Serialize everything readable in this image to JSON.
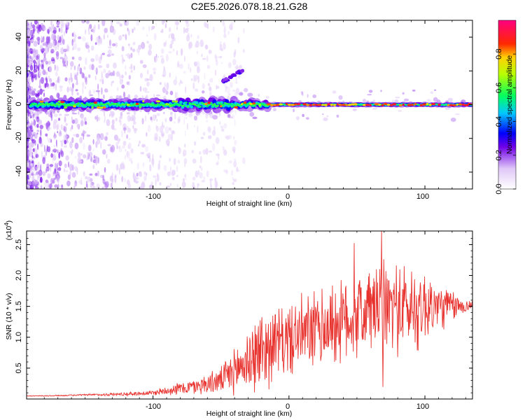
{
  "figure": {
    "title": "C2E5.2026.078.18.21.G28"
  },
  "chart_data": [
    {
      "type": "heatmap",
      "title": "C2E5.2026.078.18.21.G28",
      "xlabel": "Height of straight line (km)",
      "ylabel": "Frequency (Hz)",
      "xlim": [
        -193,
        135
      ],
      "ylim": [
        -50,
        50
      ],
      "xticks": [
        -100,
        0,
        100
      ],
      "yticks": [
        -40,
        -20,
        0,
        20,
        40
      ],
      "xtick_labels": [
        "-100",
        "0",
        "100"
      ],
      "ytick_labels": [
        "-40",
        "-20",
        "0",
        "20",
        "40"
      ],
      "colorbar": {
        "label": "Normalized spectral amplitude",
        "range": [
          0,
          1
        ],
        "ticks": [
          0.0,
          0.2,
          0.4,
          0.6,
          0.8
        ],
        "tick_labels": [
          "0.0",
          "0.2",
          "0.4",
          "0.6",
          "0.8"
        ],
        "stops": [
          {
            "value": 0.0,
            "color": "#ffffff"
          },
          {
            "value": 0.12,
            "color": "#e0c8f8"
          },
          {
            "value": 0.25,
            "color": "#7000e8"
          },
          {
            "value": 0.33,
            "color": "#0000ff"
          },
          {
            "value": 0.45,
            "color": "#00c8ff"
          },
          {
            "value": 0.55,
            "color": "#00ff60"
          },
          {
            "value": 0.68,
            "color": "#b8ff00"
          },
          {
            "value": 0.78,
            "color": "#ffd000"
          },
          {
            "value": 0.86,
            "color": "#ff2800"
          },
          {
            "value": 1.0,
            "color": "#ff0080"
          }
        ]
      },
      "features": [
        {
          "name": "carrier-trace",
          "x_range": [
            -190,
            135
          ],
          "center_hz": 0,
          "peak_amplitude": 0.9
        },
        {
          "name": "drift-feature",
          "x_range": [
            -50,
            -33
          ],
          "y_range_hz": [
            13,
            21
          ]
        }
      ]
    },
    {
      "type": "line",
      "xlabel": "Height of straight line (km)",
      "ylabel": "SNR (10 * v/v)",
      "scale_label": "(x10",
      "scale_exponent": "4",
      "xlim": [
        -193,
        135
      ],
      "ylim": [
        0,
        2.72
      ],
      "xticks": [
        -100,
        0,
        100
      ],
      "yticks": [
        0.5,
        1.0,
        1.5,
        2.0,
        2.5
      ],
      "xtick_labels": [
        "-100",
        "0",
        "100"
      ],
      "ytick_labels": [
        "0.5",
        "1.0",
        "1.5",
        "2.0",
        "2.5"
      ],
      "series": [
        {
          "name": "SNR",
          "color": "#e8322e",
          "x": [
            -193,
            -180,
            -160,
            -140,
            -120,
            -100,
            -90,
            -80,
            -70,
            -60,
            -50,
            -45,
            -40,
            -35,
            -30,
            -25,
            -20,
            -15,
            -10,
            -5,
            0,
            10,
            20,
            30,
            40,
            50,
            60,
            70,
            80,
            90,
            100,
            110,
            120,
            130,
            135
          ],
          "values": [
            0.05,
            0.05,
            0.06,
            0.07,
            0.08,
            0.1,
            0.14,
            0.17,
            0.2,
            0.25,
            0.3,
            0.38,
            0.45,
            0.55,
            0.62,
            0.7,
            0.8,
            0.85,
            0.9,
            0.93,
            0.96,
            1.05,
            1.1,
            1.2,
            1.25,
            1.35,
            1.45,
            1.5,
            1.5,
            1.45,
            1.5,
            1.5,
            1.5,
            1.5,
            1.52
          ],
          "noise_amplitude": [
            0.005,
            0.01,
            0.01,
            0.02,
            0.03,
            0.04,
            0.07,
            0.1,
            0.12,
            0.16,
            0.2,
            0.28,
            0.35,
            0.45,
            0.5,
            0.6,
            0.65,
            0.6,
            0.55,
            0.55,
            0.55,
            0.6,
            0.62,
            0.65,
            0.65,
            0.68,
            0.72,
            0.72,
            0.72,
            0.7,
            0.6,
            0.4,
            0.25,
            0.1,
            0.08
          ],
          "peaks": [
            {
              "x": 48,
              "value": 2.52
            },
            {
              "x": 68,
              "value": 2.72
            },
            {
              "x": 69,
              "value": 0.2
            }
          ]
        }
      ]
    }
  ]
}
